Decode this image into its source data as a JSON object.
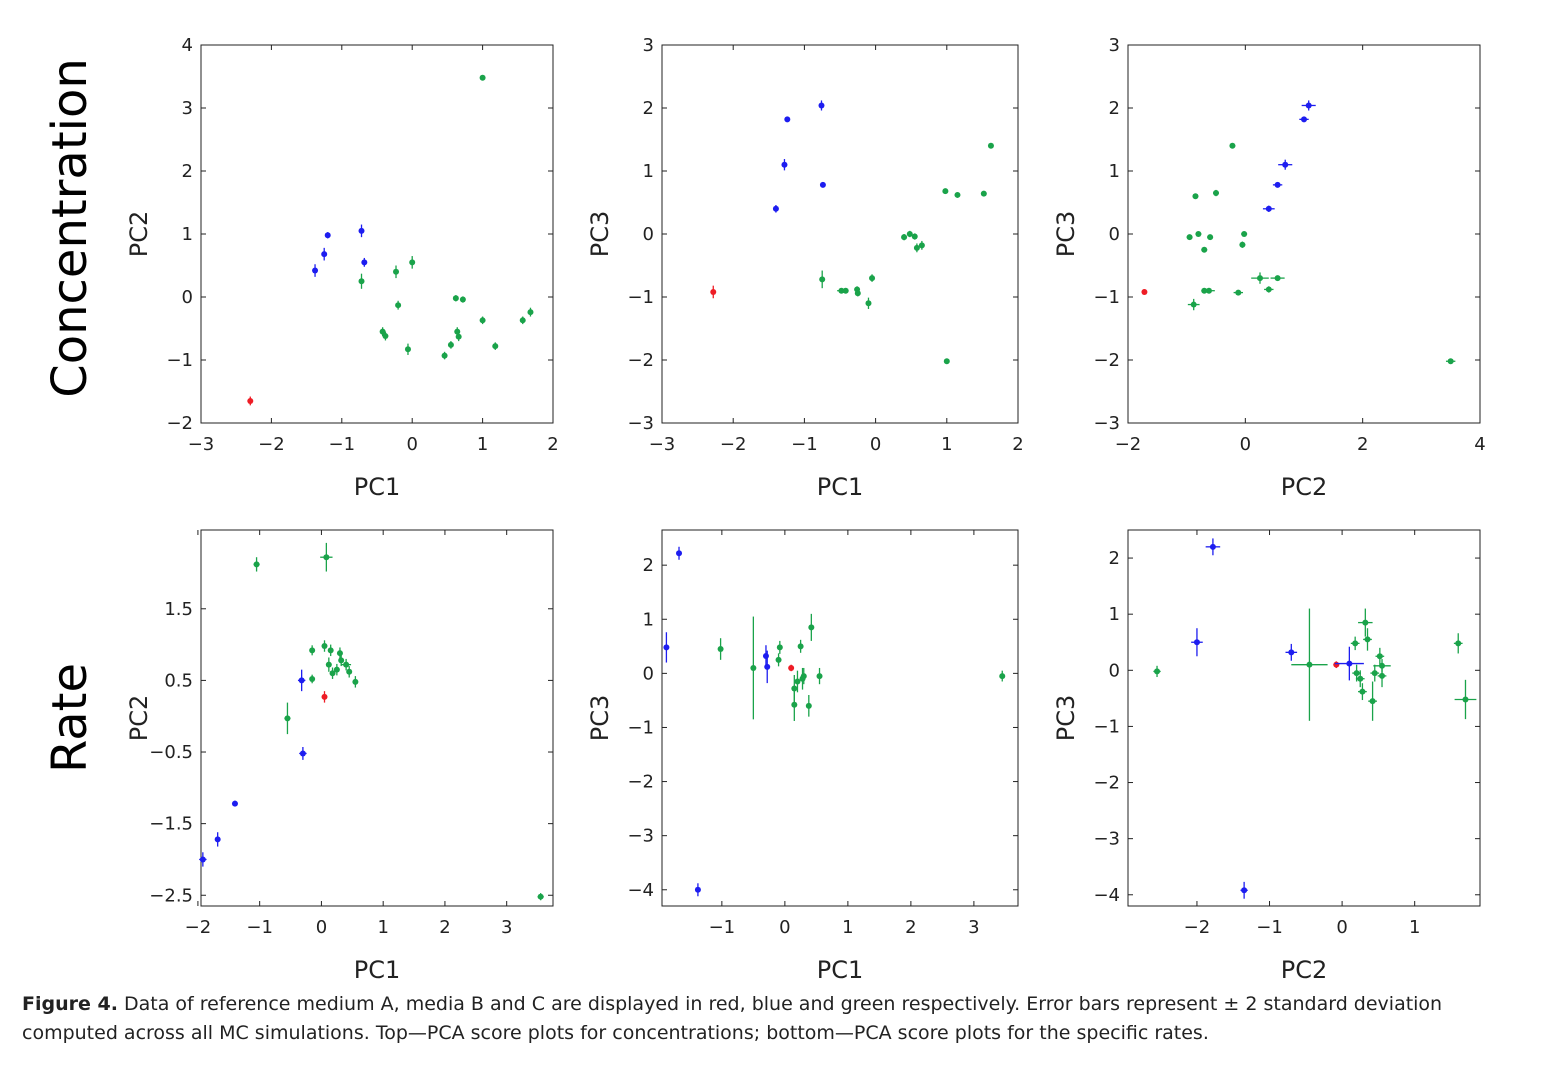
{
  "row_labels": [
    "Concentration",
    "Rate"
  ],
  "colors": {
    "A": "#ee1c25",
    "B": "#1d1df0",
    "C": "#1aa34a"
  },
  "caption": {
    "label": "Figure 4.",
    "text": " Data of reference medium A, media B and C are displayed in red, blue and green respectively. Error bars represent ± 2 standard deviation computed across all MC simulations. Top—PCA score plots for concentrations; bottom—PCA score plots for the specific rates."
  },
  "chart_data": [
    {
      "id": "conc-pc1-pc2",
      "type": "scatter",
      "xlabel": "PC1",
      "ylabel": "PC2",
      "xlim": [
        -3,
        2
      ],
      "ylim": [
        -2,
        4
      ],
      "xticks": [
        -3,
        -2,
        -1,
        0,
        1,
        2
      ],
      "yticks": [
        -2,
        -1,
        0,
        1,
        2,
        3,
        4
      ],
      "series": [
        {
          "group": "A",
          "points": [
            [
              -2.3,
              -1.65,
              0.02,
              0.07
            ]
          ]
        },
        {
          "group": "B",
          "points": [
            [
              -1.38,
              0.42,
              0.03,
              0.1
            ],
            [
              -1.25,
              0.68,
              0.03,
              0.1
            ],
            [
              -1.2,
              0.98,
              0.02,
              0.05
            ],
            [
              -0.72,
              1.05,
              0.02,
              0.1
            ],
            [
              -0.68,
              0.55,
              0.02,
              0.07
            ]
          ]
        },
        {
          "group": "C",
          "points": [
            [
              -0.72,
              0.25,
              0.03,
              0.12
            ],
            [
              -0.23,
              0.4,
              0.03,
              0.1
            ],
            [
              0.0,
              0.55,
              0.03,
              0.1
            ],
            [
              -0.2,
              -0.13,
              0.03,
              0.07
            ],
            [
              -0.42,
              -0.55,
              0.03,
              0.07
            ],
            [
              -0.38,
              -0.62,
              0.03,
              0.07
            ],
            [
              -0.06,
              -0.83,
              0.03,
              0.09
            ],
            [
              0.46,
              -0.93,
              0.02,
              0.06
            ],
            [
              0.55,
              -0.76,
              0.02,
              0.06
            ],
            [
              0.64,
              -0.55,
              0.02,
              0.07
            ],
            [
              0.66,
              -0.63,
              0.02,
              0.07
            ],
            [
              0.62,
              -0.02,
              0.03,
              0.05
            ],
            [
              0.72,
              -0.04,
              0.03,
              0.05
            ],
            [
              1.0,
              -0.37,
              0.03,
              0.06
            ],
            [
              1.18,
              -0.78,
              0.03,
              0.06
            ],
            [
              1.57,
              -0.37,
              0.03,
              0.06
            ],
            [
              1.68,
              -0.24,
              0.03,
              0.07
            ],
            [
              1.0,
              3.48,
              0.02,
              0.04
            ]
          ]
        }
      ]
    },
    {
      "id": "conc-pc1-pc3",
      "type": "scatter",
      "xlabel": "PC1",
      "ylabel": "PC3",
      "xlim": [
        -3,
        2
      ],
      "ylim": [
        -3,
        3
      ],
      "xticks": [
        -3,
        -2,
        -1,
        0,
        1,
        2
      ],
      "yticks": [
        -3,
        -2,
        -1,
        0,
        1,
        2,
        3
      ],
      "series": [
        {
          "group": "A",
          "points": [
            [
              -2.28,
              -0.92,
              0.02,
              0.1
            ]
          ]
        },
        {
          "group": "B",
          "points": [
            [
              -1.4,
              0.4,
              0.02,
              0.06
            ],
            [
              -1.28,
              1.1,
              0.02,
              0.09
            ],
            [
              -1.24,
              1.82,
              0.02,
              0.04
            ],
            [
              -0.76,
              2.04,
              0.02,
              0.08
            ],
            [
              -0.74,
              0.78,
              0.02,
              0.04
            ]
          ]
        },
        {
          "group": "C",
          "points": [
            [
              -0.75,
              -0.72,
              0.02,
              0.14
            ],
            [
              -0.48,
              -0.9,
              0.06,
              0.03
            ],
            [
              -0.42,
              -0.9,
              0.04,
              0.03
            ],
            [
              -0.26,
              -0.88,
              0.02,
              0.05
            ],
            [
              -0.25,
              -0.94,
              0.02,
              0.05
            ],
            [
              -0.1,
              -1.1,
              0.02,
              0.09
            ],
            [
              -0.05,
              -0.7,
              0.02,
              0.06
            ],
            [
              0.4,
              -0.05,
              0.03,
              0.05
            ],
            [
              0.48,
              0.0,
              0.03,
              0.05
            ],
            [
              0.55,
              -0.04,
              0.03,
              0.05
            ],
            [
              0.58,
              -0.22,
              0.03,
              0.07
            ],
            [
              0.65,
              -0.18,
              0.03,
              0.07
            ],
            [
              0.98,
              0.68,
              0.02,
              0.04
            ],
            [
              1.15,
              0.62,
              0.02,
              0.04
            ],
            [
              1.52,
              0.64,
              0.02,
              0.04
            ],
            [
              1.62,
              1.4,
              0.02,
              0.04
            ],
            [
              1.0,
              -2.02,
              0.02,
              0.04
            ]
          ]
        }
      ]
    },
    {
      "id": "conc-pc2-pc3",
      "type": "scatter",
      "xlabel": "PC2",
      "ylabel": "PC3",
      "xlim": [
        -2,
        4
      ],
      "ylim": [
        -3,
        3
      ],
      "xticks": [
        -2,
        0,
        2,
        4
      ],
      "yticks": [
        -3,
        -2,
        -1,
        0,
        1,
        2,
        3
      ],
      "series": [
        {
          "group": "A",
          "points": [
            [
              -1.72,
              -0.92,
              0.02,
              0.03
            ]
          ]
        },
        {
          "group": "B",
          "points": [
            [
              0.4,
              0.4,
              0.1,
              0.05
            ],
            [
              0.55,
              0.78,
              0.08,
              0.04
            ],
            [
              0.68,
              1.1,
              0.12,
              0.08
            ],
            [
              1.0,
              1.82,
              0.08,
              0.04
            ],
            [
              1.08,
              2.04,
              0.12,
              0.08
            ]
          ]
        },
        {
          "group": "C",
          "points": [
            [
              -0.95,
              -0.05,
              0.05,
              0.03
            ],
            [
              -0.8,
              0.0,
              0.05,
              0.03
            ],
            [
              -0.85,
              0.6,
              0.05,
              0.04
            ],
            [
              -0.6,
              -0.05,
              0.05,
              0.03
            ],
            [
              -0.7,
              -0.25,
              0.05,
              0.04
            ],
            [
              -0.62,
              -0.9,
              0.1,
              0.03
            ],
            [
              -0.7,
              -0.9,
              0.05,
              0.03
            ],
            [
              -0.88,
              -1.12,
              0.1,
              0.09
            ],
            [
              -0.22,
              1.4,
              0.05,
              0.03
            ],
            [
              -0.5,
              0.65,
              0.05,
              0.05
            ],
            [
              -0.02,
              0.0,
              0.05,
              0.03
            ],
            [
              -0.05,
              -0.17,
              0.05,
              0.05
            ],
            [
              -0.12,
              -0.93,
              0.08,
              0.03
            ],
            [
              0.25,
              -0.7,
              0.15,
              0.09
            ],
            [
              0.4,
              -0.88,
              0.08,
              0.05
            ],
            [
              0.55,
              -0.7,
              0.12,
              0.03
            ],
            [
              3.5,
              -2.02,
              0.08,
              0.03
            ]
          ]
        }
      ]
    },
    {
      "id": "rate-pc1-pc2",
      "type": "scatter",
      "xlabel": "PC1",
      "ylabel": "PC2",
      "xlim": [
        -1.95,
        3.75
      ],
      "ylim": [
        -2.65,
        2.6
      ],
      "xticks": [
        -2,
        -1,
        0,
        1,
        2,
        3
      ],
      "yticks": [
        -2.5,
        -1.5,
        -0.5,
        0.5,
        1.5
      ],
      "series": [
        {
          "group": "A",
          "points": [
            [
              0.05,
              0.27,
              0.02,
              0.08
            ]
          ]
        },
        {
          "group": "B",
          "points": [
            [
              -1.92,
              -2.0,
              0.06,
              0.1
            ],
            [
              -1.68,
              -1.72,
              0.03,
              0.1
            ],
            [
              -1.4,
              -1.22,
              0.04,
              0.04
            ],
            [
              -0.3,
              -0.52,
              0.06,
              0.09
            ],
            [
              -0.32,
              0.5,
              0.06,
              0.15
            ]
          ]
        },
        {
          "group": "C",
          "points": [
            [
              -1.05,
              2.12,
              0.05,
              0.1
            ],
            [
              0.08,
              2.22,
              0.1,
              0.2
            ],
            [
              -0.55,
              -0.03,
              0.05,
              0.22
            ],
            [
              -0.15,
              0.92,
              0.03,
              0.07
            ],
            [
              -0.15,
              0.52,
              0.03,
              0.06
            ],
            [
              0.05,
              0.98,
              0.03,
              0.08
            ],
            [
              0.12,
              0.72,
              0.03,
              0.1
            ],
            [
              0.15,
              0.92,
              0.03,
              0.08
            ],
            [
              0.18,
              0.6,
              0.03,
              0.08
            ],
            [
              0.25,
              0.65,
              0.03,
              0.08
            ],
            [
              0.3,
              0.88,
              0.03,
              0.08
            ],
            [
              0.32,
              0.78,
              0.03,
              0.08
            ],
            [
              0.4,
              0.72,
              0.08,
              0.08
            ],
            [
              0.45,
              0.62,
              0.03,
              0.08
            ],
            [
              0.55,
              0.48,
              0.03,
              0.08
            ],
            [
              3.55,
              -2.52,
              0.05,
              0.05
            ]
          ]
        }
      ]
    },
    {
      "id": "rate-pc1-pc3",
      "type": "scatter",
      "xlabel": "PC1",
      "ylabel": "PC3",
      "xlim": [
        -1.95,
        3.7
      ],
      "ylim": [
        -4.3,
        2.65
      ],
      "xticks": [
        -1,
        0,
        1,
        2,
        3
      ],
      "yticks": [
        -4,
        -3,
        -2,
        -1,
        0,
        1,
        2
      ],
      "series": [
        {
          "group": "A",
          "points": [
            [
              0.1,
              0.1,
              0.04,
              0.06
            ]
          ]
        },
        {
          "group": "B",
          "points": [
            [
              -1.88,
              0.48,
              0.04,
              0.28
            ],
            [
              -1.68,
              2.22,
              0.04,
              0.12
            ],
            [
              -1.38,
              -4.0,
              0.04,
              0.12
            ],
            [
              -0.3,
              0.32,
              0.04,
              0.2
            ],
            [
              -0.28,
              0.12,
              0.04,
              0.3
            ]
          ]
        },
        {
          "group": "C",
          "points": [
            [
              -1.02,
              0.45,
              0.04,
              0.2
            ],
            [
              -0.5,
              0.1,
              0.04,
              0.95
            ],
            [
              -0.1,
              0.25,
              0.04,
              0.12
            ],
            [
              -0.08,
              0.48,
              0.04,
              0.12
            ],
            [
              0.15,
              -0.28,
              0.04,
              0.25
            ],
            [
              0.15,
              -0.58,
              0.04,
              0.3
            ],
            [
              0.2,
              -0.15,
              0.04,
              0.2
            ],
            [
              0.25,
              0.5,
              0.04,
              0.12
            ],
            [
              0.28,
              -0.1,
              0.04,
              0.2
            ],
            [
              0.3,
              -0.05,
              0.04,
              0.15
            ],
            [
              0.38,
              -0.6,
              0.04,
              0.2
            ],
            [
              0.42,
              0.85,
              0.04,
              0.25
            ],
            [
              0.55,
              -0.05,
              0.04,
              0.15
            ],
            [
              3.45,
              -0.05,
              0.04,
              0.1
            ]
          ]
        }
      ]
    },
    {
      "id": "rate-pc2-pc3",
      "type": "scatter",
      "xlabel": "PC2",
      "ylabel": "PC3",
      "xlim": [
        -2.95,
        1.9
      ],
      "ylim": [
        -4.2,
        2.5
      ],
      "xticks": [
        -2,
        -1,
        0,
        1
      ],
      "yticks": [
        -4,
        -3,
        -2,
        -1,
        0,
        1,
        2
      ],
      "series": [
        {
          "group": "A",
          "points": [
            [
              -0.08,
              0.1,
              0.04,
              0.06
            ]
          ]
        },
        {
          "group": "B",
          "points": [
            [
              -2.0,
              0.5,
              0.08,
              0.25
            ],
            [
              -1.78,
              2.2,
              0.1,
              0.15
            ],
            [
              -1.35,
              -3.92,
              0.05,
              0.15
            ],
            [
              -0.7,
              0.32,
              0.08,
              0.15
            ],
            [
              0.1,
              0.12,
              0.2,
              0.3
            ]
          ]
        },
        {
          "group": "C",
          "points": [
            [
              -2.55,
              -0.02,
              0.05,
              0.1
            ],
            [
              -0.45,
              0.1,
              0.25,
              1.0
            ],
            [
              0.18,
              0.48,
              0.06,
              0.12
            ],
            [
              0.2,
              -0.05,
              0.06,
              0.15
            ],
            [
              0.25,
              -0.15,
              0.06,
              0.15
            ],
            [
              0.28,
              -0.38,
              0.06,
              0.15
            ],
            [
              0.32,
              0.85,
              0.1,
              0.25
            ],
            [
              0.35,
              0.55,
              0.06,
              0.2
            ],
            [
              0.42,
              -0.55,
              0.06,
              0.35
            ],
            [
              0.45,
              -0.05,
              0.06,
              0.15
            ],
            [
              0.52,
              0.25,
              0.06,
              0.15
            ],
            [
              0.55,
              0.08,
              0.12,
              0.12
            ],
            [
              0.55,
              -0.1,
              0.06,
              0.2
            ],
            [
              1.6,
              0.48,
              0.06,
              0.18
            ],
            [
              1.7,
              -0.52,
              0.15,
              0.35
            ]
          ]
        }
      ]
    }
  ]
}
